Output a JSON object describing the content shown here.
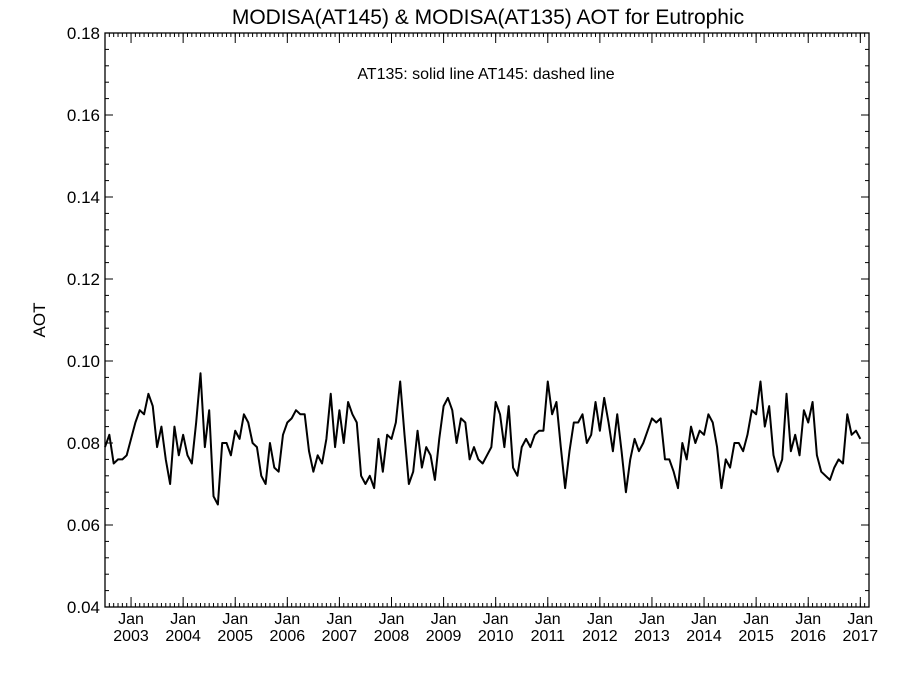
{
  "chart_data": {
    "type": "line",
    "title": "MODISA(AT145) & MODISA(AT135)  AOT for Eutrophic",
    "annotation": "AT135: solid line   AT145: dashed line",
    "ylabel": "AOT",
    "xlabel": "",
    "ylim": [
      0.04,
      0.18
    ],
    "yticks": [
      0.04,
      0.06,
      0.08,
      0.1,
      0.12,
      0.14,
      0.16,
      0.18
    ],
    "ytick_labels": [
      "0.04",
      "0.06",
      "0.08",
      "0.10",
      "0.12",
      "0.14",
      "0.16",
      "0.18"
    ],
    "xlim": [
      "2002-07",
      "2017-03"
    ],
    "xtick_labels": [
      {
        "month": "Jan",
        "year": "2003"
      },
      {
        "month": "Jan",
        "year": "2004"
      },
      {
        "month": "Jan",
        "year": "2005"
      },
      {
        "month": "Jan",
        "year": "2006"
      },
      {
        "month": "Jan",
        "year": "2007"
      },
      {
        "month": "Jan",
        "year": "2008"
      },
      {
        "month": "Jan",
        "year": "2009"
      },
      {
        "month": "Jan",
        "year": "2010"
      },
      {
        "month": "Jan",
        "year": "2011"
      },
      {
        "month": "Jan",
        "year": "2012"
      },
      {
        "month": "Jan",
        "year": "2013"
      },
      {
        "month": "Jan",
        "year": "2014"
      },
      {
        "month": "Jan",
        "year": "2015"
      },
      {
        "month": "Jan",
        "year": "2016"
      },
      {
        "month": "Jan",
        "year": "2017"
      }
    ],
    "grid": false,
    "series": [
      {
        "name": "AT135",
        "style": "solid",
        "x_start": "2002-07",
        "step": "month",
        "values": [
          0.079,
          0.082,
          0.075,
          0.076,
          0.076,
          0.077,
          0.081,
          0.085,
          0.088,
          0.087,
          0.092,
          0.089,
          0.079,
          0.084,
          0.076,
          0.07,
          0.084,
          0.077,
          0.082,
          0.077,
          0.075,
          0.085,
          0.097,
          0.079,
          0.088,
          0.067,
          0.065,
          0.08,
          0.08,
          0.077,
          0.083,
          0.081,
          0.087,
          0.085,
          0.08,
          0.079,
          0.072,
          0.07,
          0.08,
          0.074,
          0.073,
          0.082,
          0.085,
          0.086,
          0.088,
          0.087,
          0.087,
          0.078,
          0.073,
          0.077,
          0.075,
          0.081,
          0.092,
          0.079,
          0.088,
          0.08,
          0.09,
          0.087,
          0.085,
          0.072,
          0.07,
          0.072,
          0.069,
          0.081,
          0.073,
          0.082,
          0.081,
          0.085,
          0.095,
          0.082,
          0.07,
          0.073,
          0.083,
          0.074,
          0.079,
          0.077,
          0.071,
          0.081,
          0.089,
          0.091,
          0.088,
          0.08,
          0.086,
          0.085,
          0.076,
          0.079,
          0.076,
          0.075,
          0.077,
          0.079,
          0.09,
          0.087,
          0.079,
          0.089,
          0.074,
          0.072,
          0.079,
          0.081,
          0.079,
          0.082,
          0.083,
          0.083,
          0.095,
          0.087,
          0.09,
          0.079,
          0.069,
          0.078,
          0.085,
          0.085,
          0.087,
          0.08,
          0.082,
          0.09,
          0.083,
          0.091,
          0.085,
          0.078,
          0.087,
          0.078,
          0.068,
          0.076,
          0.081,
          0.078,
          0.08,
          0.083,
          0.086,
          0.085,
          0.086,
          0.076,
          0.076,
          0.073,
          0.069,
          0.08,
          0.076,
          0.084,
          0.08,
          0.083,
          0.082,
          0.087,
          0.085,
          0.079,
          0.069,
          0.076,
          0.074,
          0.08,
          0.08,
          0.078,
          0.082,
          0.088,
          0.087,
          0.095,
          0.084,
          0.089,
          0.077,
          0.073,
          0.076,
          0.092,
          0.078,
          0.082,
          0.077,
          0.088,
          0.085,
          0.09,
          0.077,
          0.073,
          0.072,
          0.071,
          0.074,
          0.076,
          0.075,
          0.087,
          0.082,
          0.083,
          0.081
        ]
      }
    ]
  }
}
